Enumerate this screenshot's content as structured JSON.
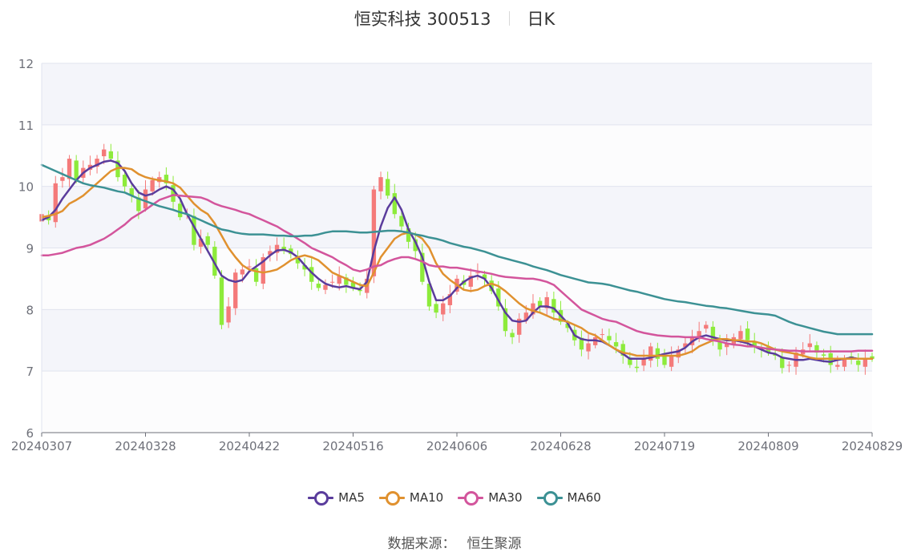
{
  "title": {
    "name": "恒实科技 300513",
    "period": "日K"
  },
  "legend": [
    {
      "name": "MA5",
      "color": "#5a3c9c"
    },
    {
      "name": "MA10",
      "color": "#e0912f"
    },
    {
      "name": "MA30",
      "color": "#d3559c"
    },
    {
      "name": "MA60",
      "color": "#3c9194"
    }
  ],
  "source": {
    "label": "数据来源：",
    "value": "恒生聚源"
  },
  "colors": {
    "up": "#f47a7a",
    "down": "#8deb3b",
    "band": "#f4f5fa",
    "grid": "#e1e4ef",
    "axis": "#6e7079"
  },
  "chart_data": {
    "type": "candlestick",
    "ylim": [
      6,
      12
    ],
    "yticks": [
      "6",
      "7",
      "8",
      "9",
      "10",
      "11",
      "12"
    ],
    "xtick_labels": [
      "20240307",
      "20240328",
      "20240422",
      "20240516",
      "20240606",
      "20240628",
      "20240719",
      "20240809",
      "20240829"
    ],
    "xtick_index": [
      0,
      15,
      30,
      45,
      60,
      75,
      90,
      105,
      120
    ],
    "grid": true,
    "close": [
      9.55,
      9.45,
      10.05,
      10.15,
      10.45,
      10.1,
      10.3,
      10.35,
      10.45,
      10.6,
      10.45,
      10.15,
      10.0,
      9.85,
      9.6,
      9.95,
      10.1,
      10.15,
      10.05,
      9.75,
      9.5,
      9.55,
      9.05,
      9.15,
      9.05,
      8.55,
      7.75,
      8.05,
      8.6,
      8.65,
      8.7,
      8.45,
      8.85,
      8.95,
      9.05,
      8.95,
      8.9,
      8.75,
      8.65,
      8.45,
      8.35,
      8.4,
      8.45,
      8.55,
      8.4,
      8.35,
      8.3,
      8.5,
      9.95,
      10.15,
      9.85,
      9.55,
      9.35,
      9.1,
      8.95,
      8.45,
      8.05,
      7.95,
      8.1,
      8.25,
      8.5,
      8.4,
      8.55,
      8.6,
      8.5,
      8.3,
      8.05,
      7.65,
      7.55,
      7.85,
      7.95,
      8.1,
      8.05,
      8.2,
      7.95,
      7.8,
      7.7,
      7.5,
      7.35,
      7.45,
      7.55,
      7.6,
      7.5,
      7.4,
      7.25,
      7.1,
      7.05,
      7.2,
      7.4,
      7.2,
      7.1,
      7.25,
      7.35,
      7.45,
      7.55,
      7.65,
      7.75,
      7.5,
      7.35,
      7.45,
      7.55,
      7.65,
      7.5,
      7.4,
      7.35,
      7.3,
      7.25,
      7.05,
      7.1,
      7.3,
      7.35,
      7.45,
      7.3,
      7.25,
      7.1,
      7.1,
      7.2,
      7.2,
      7.1,
      7.2,
      7.2
    ],
    "series": [
      {
        "name": "MA5",
        "values": [
          9.45,
          9.5,
          9.62,
          9.8,
          9.95,
          10.1,
          10.22,
          10.3,
          10.35,
          10.4,
          10.42,
          10.38,
          10.25,
          10.05,
          9.9,
          9.85,
          9.88,
          9.95,
          10.0,
          9.95,
          9.8,
          9.55,
          9.35,
          9.15,
          8.95,
          8.75,
          8.55,
          8.48,
          8.45,
          8.48,
          8.62,
          8.7,
          8.78,
          8.88,
          8.96,
          8.97,
          8.93,
          8.85,
          8.72,
          8.6,
          8.5,
          8.42,
          8.38,
          8.36,
          8.38,
          8.35,
          8.33,
          8.45,
          8.95,
          9.35,
          9.65,
          9.82,
          9.62,
          9.3,
          9.1,
          8.85,
          8.45,
          8.15,
          8.15,
          8.22,
          8.35,
          8.45,
          8.52,
          8.55,
          8.5,
          8.35,
          8.15,
          7.95,
          7.82,
          7.8,
          7.82,
          7.95,
          8.05,
          8.05,
          8.02,
          7.9,
          7.78,
          7.58,
          7.52,
          7.5,
          7.5,
          7.48,
          7.42,
          7.35,
          7.28,
          7.2,
          7.2,
          7.2,
          7.22,
          7.25,
          7.28,
          7.3,
          7.32,
          7.38,
          7.48,
          7.55,
          7.58,
          7.55,
          7.52,
          7.5,
          7.5,
          7.48,
          7.45,
          7.4,
          7.35,
          7.3,
          7.28,
          7.22,
          7.2,
          7.18,
          7.18,
          7.2,
          7.18,
          7.16,
          7.15,
          7.18,
          7.2,
          7.22,
          7.2,
          7.2,
          7.2
        ]
      },
      {
        "name": "MA10",
        "values": [
          9.5,
          9.52,
          9.55,
          9.6,
          9.72,
          9.78,
          9.85,
          9.95,
          10.05,
          10.15,
          10.25,
          10.3,
          10.3,
          10.28,
          10.2,
          10.15,
          10.12,
          10.1,
          10.08,
          10.05,
          9.98,
          9.85,
          9.72,
          9.62,
          9.55,
          9.4,
          9.2,
          9.0,
          8.85,
          8.72,
          8.65,
          8.62,
          8.6,
          8.62,
          8.65,
          8.72,
          8.8,
          8.85,
          8.88,
          8.85,
          8.8,
          8.7,
          8.6,
          8.55,
          8.5,
          8.45,
          8.4,
          8.38,
          8.6,
          8.85,
          9.0,
          9.15,
          9.22,
          9.25,
          9.22,
          9.15,
          9.0,
          8.75,
          8.58,
          8.48,
          8.4,
          8.32,
          8.3,
          8.32,
          8.38,
          8.42,
          8.38,
          8.3,
          8.2,
          8.1,
          8.02,
          7.98,
          7.95,
          7.9,
          7.85,
          7.83,
          7.8,
          7.75,
          7.7,
          7.62,
          7.58,
          7.5,
          7.42,
          7.35,
          7.3,
          7.28,
          7.25,
          7.25,
          7.25,
          7.25,
          7.25,
          7.25,
          7.25,
          7.28,
          7.32,
          7.4,
          7.45,
          7.5,
          7.52,
          7.52,
          7.5,
          7.5,
          7.48,
          7.48,
          7.45,
          7.4,
          7.35,
          7.32,
          7.3,
          7.28,
          7.25,
          7.22,
          7.2,
          7.2,
          7.2,
          7.2,
          7.2,
          7.2,
          7.2,
          7.2,
          7.2
        ]
      },
      {
        "name": "MA30",
        "values": [
          8.88,
          8.88,
          8.9,
          8.92,
          8.96,
          9.0,
          9.02,
          9.05,
          9.1,
          9.15,
          9.22,
          9.3,
          9.38,
          9.48,
          9.55,
          9.62,
          9.7,
          9.78,
          9.82,
          9.86,
          9.85,
          9.84,
          9.83,
          9.82,
          9.78,
          9.72,
          9.68,
          9.65,
          9.62,
          9.58,
          9.55,
          9.5,
          9.45,
          9.4,
          9.35,
          9.28,
          9.22,
          9.15,
          9.08,
          9.0,
          8.95,
          8.9,
          8.85,
          8.78,
          8.72,
          8.65,
          8.62,
          8.65,
          8.7,
          8.72,
          8.78,
          8.82,
          8.85,
          8.85,
          8.82,
          8.78,
          8.72,
          8.7,
          8.7,
          8.68,
          8.68,
          8.66,
          8.64,
          8.62,
          8.6,
          8.58,
          8.55,
          8.53,
          8.52,
          8.51,
          8.5,
          8.5,
          8.48,
          8.45,
          8.4,
          8.3,
          8.2,
          8.1,
          8.0,
          7.95,
          7.9,
          7.85,
          7.82,
          7.8,
          7.75,
          7.7,
          7.65,
          7.62,
          7.6,
          7.58,
          7.57,
          7.56,
          7.56,
          7.55,
          7.55,
          7.55,
          7.52,
          7.5,
          7.48,
          7.45,
          7.43,
          7.42,
          7.4,
          7.4,
          7.38,
          7.36,
          7.35,
          7.34,
          7.33,
          7.33,
          7.32,
          7.32,
          7.32,
          7.32,
          7.32,
          7.32,
          7.32,
          7.32,
          7.33,
          7.33,
          7.33
        ]
      },
      {
        "name": "MA60",
        "values": [
          10.35,
          10.3,
          10.25,
          10.2,
          10.15,
          10.1,
          10.05,
          10.02,
          10.0,
          9.98,
          9.95,
          9.92,
          9.9,
          9.85,
          9.8,
          9.76,
          9.72,
          9.68,
          9.65,
          9.62,
          9.58,
          9.55,
          9.5,
          9.45,
          9.4,
          9.35,
          9.3,
          9.28,
          9.25,
          9.23,
          9.22,
          9.22,
          9.22,
          9.21,
          9.2,
          9.2,
          9.19,
          9.19,
          9.2,
          9.2,
          9.22,
          9.25,
          9.27,
          9.27,
          9.27,
          9.26,
          9.25,
          9.25,
          9.26,
          9.27,
          9.28,
          9.28,
          9.27,
          9.25,
          9.22,
          9.2,
          9.17,
          9.15,
          9.12,
          9.08,
          9.05,
          9.02,
          9.0,
          8.97,
          8.94,
          8.9,
          8.86,
          8.83,
          8.8,
          8.77,
          8.74,
          8.7,
          8.67,
          8.64,
          8.6,
          8.56,
          8.53,
          8.5,
          8.47,
          8.44,
          8.43,
          8.42,
          8.4,
          8.37,
          8.34,
          8.31,
          8.29,
          8.26,
          8.23,
          8.2,
          8.17,
          8.15,
          8.13,
          8.12,
          8.1,
          8.08,
          8.06,
          8.05,
          8.03,
          8.02,
          8.0,
          7.98,
          7.96,
          7.94,
          7.93,
          7.92,
          7.9,
          7.85,
          7.8,
          7.76,
          7.73,
          7.7,
          7.67,
          7.64,
          7.62,
          7.6,
          7.6,
          7.6,
          7.6,
          7.6,
          7.6
        ]
      }
    ]
  }
}
